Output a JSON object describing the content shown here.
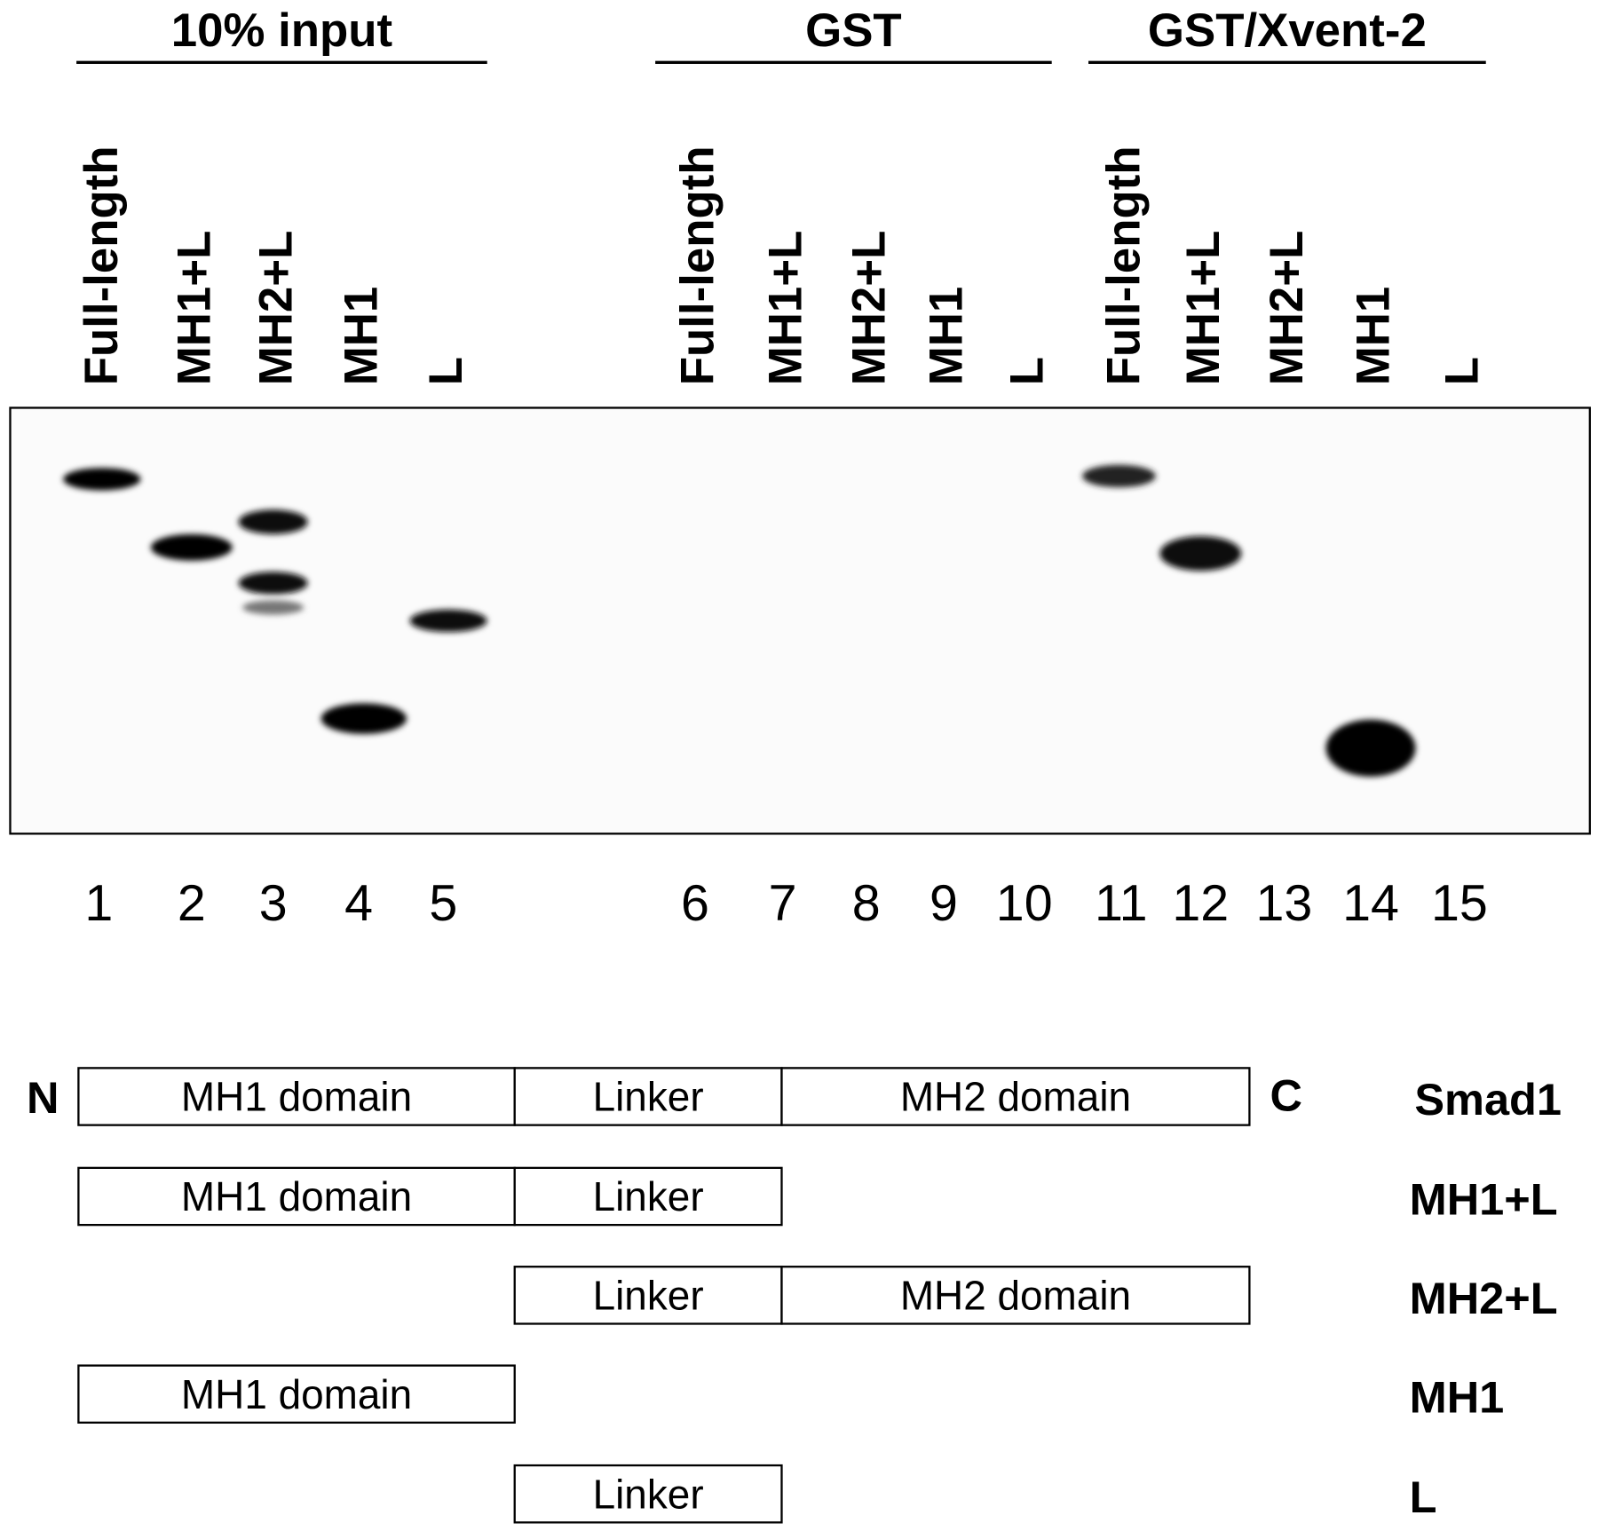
{
  "gel": {
    "groups": [
      {
        "title": "10% input",
        "lanes": [
          {
            "label": "Full-length",
            "number": 1
          },
          {
            "label": "MH1+L",
            "number": 2
          },
          {
            "label": "MH2+L",
            "number": 3
          },
          {
            "label": "MH1",
            "number": 4
          },
          {
            "label": "L",
            "number": 5
          }
        ]
      },
      {
        "title": "GST",
        "lanes": [
          {
            "label": "Full-length",
            "number": 6
          },
          {
            "label": "MH1+L",
            "number": 7
          },
          {
            "label": "MH2+L",
            "number": 8
          },
          {
            "label": "MH1",
            "number": 9
          },
          {
            "label": "L",
            "number": 10
          }
        ]
      },
      {
        "title": "GST/Xvent-2",
        "lanes": [
          {
            "label": "Full-length",
            "number": 11
          },
          {
            "label": "MH1+L",
            "number": 12
          },
          {
            "label": "MH2+L",
            "number": 13
          },
          {
            "label": "MH1",
            "number": 14
          },
          {
            "label": "L",
            "number": 15
          }
        ]
      }
    ]
  },
  "constructs": {
    "n_terminus": "N",
    "c_terminus": "C",
    "rows": [
      {
        "name": "Smad1",
        "segments": [
          "MH1 domain",
          "Linker",
          "MH2 domain"
        ]
      },
      {
        "name": "MH1+L",
        "segments": [
          "MH1 domain",
          "Linker"
        ]
      },
      {
        "name": "MH2+L",
        "segments": [
          "Linker",
          "MH2 domain"
        ]
      },
      {
        "name": "MH1",
        "segments": [
          "MH1 domain"
        ]
      },
      {
        "name": "L",
        "segments": [
          "Linker"
        ]
      }
    ]
  }
}
